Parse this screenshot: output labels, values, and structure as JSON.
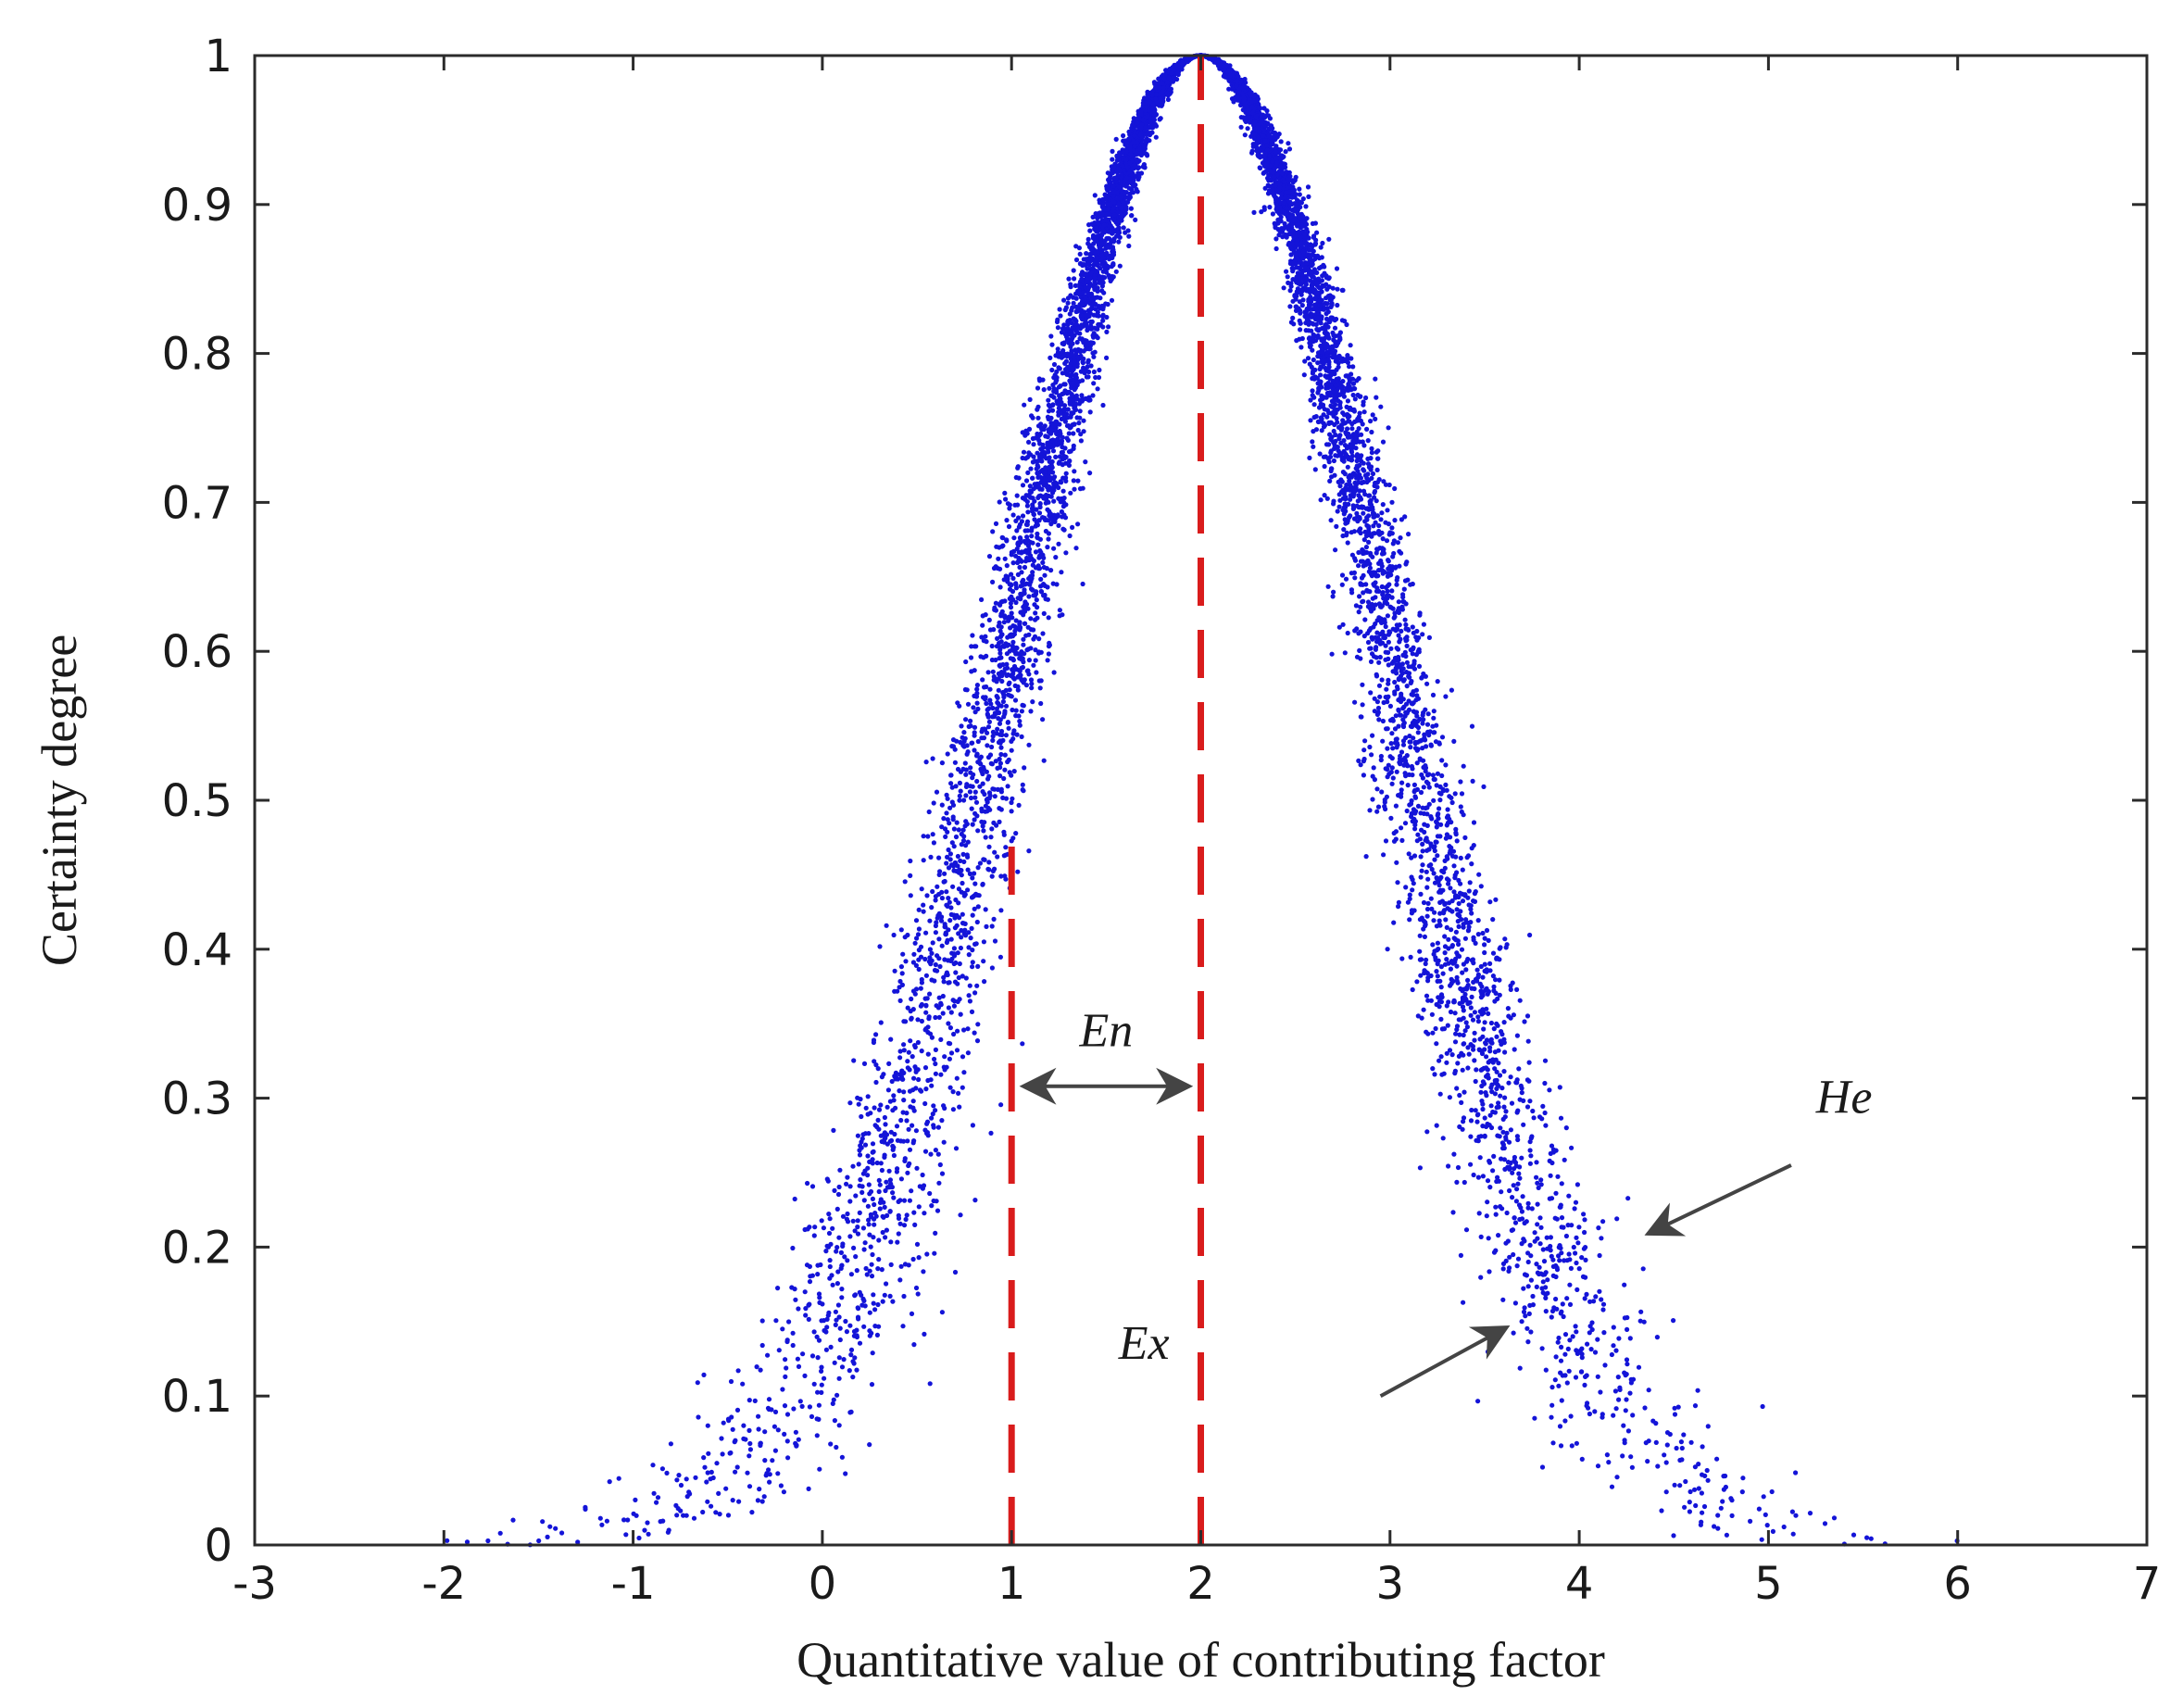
{
  "chart_data": {
    "type": "scatter",
    "xlabel": "Quantitative value of contributing factor",
    "ylabel": "Certainty degree",
    "xlim": [
      -3,
      7
    ],
    "ylim": [
      0,
      1
    ],
    "x_ticks": [
      -3,
      -2,
      -1,
      0,
      1,
      2,
      3,
      4,
      5,
      6,
      7
    ],
    "y_ticks": [
      0,
      0.1,
      0.2,
      0.3,
      0.4,
      0.5,
      0.6,
      0.7,
      0.8,
      0.9,
      1
    ],
    "x_tick_labels": [
      "-3",
      "-2",
      "-1",
      "0",
      "1",
      "2",
      "3",
      "4",
      "5",
      "6",
      "7"
    ],
    "y_tick_labels": [
      "0",
      "0.1",
      "0.2",
      "0.3",
      "0.4",
      "0.5",
      "0.6",
      "0.7",
      "0.8",
      "0.9",
      "1"
    ],
    "grid": false,
    "colors": {
      "points": "#1414d8",
      "guides": "#d91c1c",
      "arrows": "#444444"
    },
    "cloud_model": {
      "Ex": 2,
      "En": 1,
      "He": 0.1,
      "drops": 9000
    },
    "guide_lines": [
      {
        "x": 1,
        "y_from": 0,
        "y_to": 0.48
      },
      {
        "x": 2,
        "y_from": 0,
        "y_to": 1
      }
    ],
    "annotations": [
      {
        "text": "En",
        "x": 1.5,
        "y": 0.335
      },
      {
        "text": "Ex",
        "x": 1.7,
        "y": 0.125
      },
      {
        "text": "He",
        "x": 5.4,
        "y": 0.29
      }
    ],
    "arrows": [
      {
        "name": "en-arrow",
        "from": [
          1.08,
          0.308
        ],
        "to": [
          1.92,
          0.308
        ],
        "double": true
      },
      {
        "name": "he-outer-arrow",
        "from": [
          5.12,
          0.255
        ],
        "to": [
          4.38,
          0.21
        ],
        "double": false
      },
      {
        "name": "he-inner-arrow",
        "from": [
          2.95,
          0.1
        ],
        "to": [
          3.6,
          0.145
        ],
        "double": false
      }
    ]
  }
}
